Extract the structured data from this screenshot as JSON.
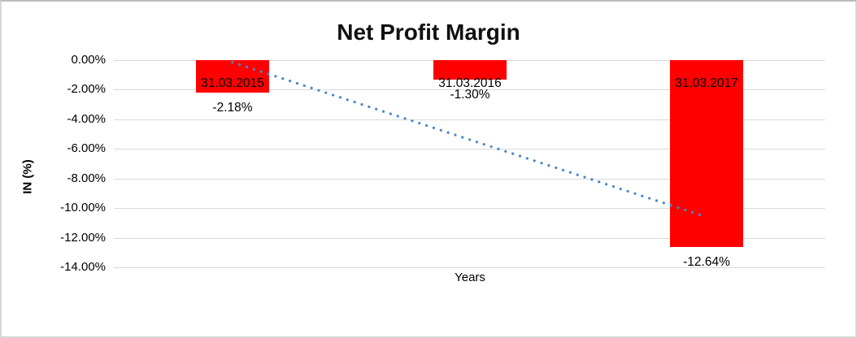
{
  "chart_data": {
    "type": "bar",
    "title": "Net Profit Margin",
    "xlabel": "Years",
    "ylabel": "IN (%)",
    "categories": [
      "31.03.2015",
      "31.03.2016",
      "31.03.2017"
    ],
    "values": [
      -2.18,
      -1.3,
      -12.64
    ],
    "data_labels": [
      "-2.18%",
      "-1.30%",
      "-12.64%"
    ],
    "y_ticks": [
      "0.00%",
      "-2.00%",
      "-4.00%",
      "-6.00%",
      "-8.00%",
      "-10.00%",
      "-12.00%",
      "-14.00%"
    ],
    "y_tick_values": [
      0,
      -2,
      -4,
      -6,
      -8,
      -10,
      -12,
      -14
    ],
    "ylim": [
      -14,
      0
    ],
    "grid": true,
    "legend": "none",
    "bar_color": "#FF0000",
    "trendline": {
      "type": "linear",
      "style": "dotted",
      "color": "#4A86C8",
      "start_value": -0.14,
      "end_value": -10.6
    }
  },
  "colors": {
    "grid": "#D9D9D9",
    "text": "#000000",
    "border": "#D6D6D6",
    "background": "#FFFFFF"
  }
}
